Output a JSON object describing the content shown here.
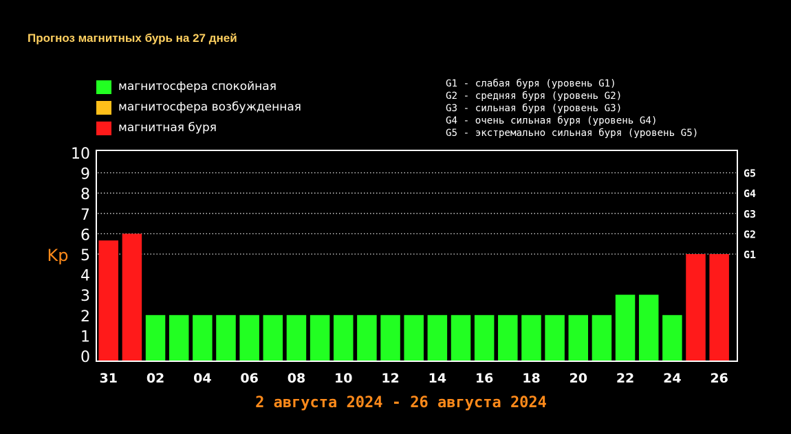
{
  "title": "Прогноз магнитных бурь на 27 дней",
  "legend": [
    {
      "label": "магнитосфера спокойная",
      "color": "#22ff22"
    },
    {
      "label": "магнитосфера возбужденная",
      "color": "#ffbf1a"
    },
    {
      "label": "магнитная буря",
      "color": "#ff1a1a"
    }
  ],
  "storm_levels": [
    "G1 - слабая буря (уровень G1)",
    "G2 - средняя буря (уровень G2)",
    "G3 - сильная буря (уровень G3)",
    "G4 - очень сильная буря (уровень G4)",
    "G5 - экстремально сильная буря (уровень G5)"
  ],
  "chart_data": {
    "type": "bar",
    "title": "Прогноз магнитных бурь на 27 дней",
    "ylabel": "Kp",
    "xlabel": "2 августа 2024 - 26 августа 2024",
    "ylim": [
      0,
      10
    ],
    "y_ticks": [
      "0",
      "1",
      "2",
      "3",
      "4",
      "5",
      "6",
      "7",
      "8",
      "9",
      "10"
    ],
    "right_axis_ticks": [
      {
        "label": "G1",
        "value": 5
      },
      {
        "label": "G2",
        "value": 6
      },
      {
        "label": "G3",
        "value": 7
      },
      {
        "label": "G4",
        "value": 8
      },
      {
        "label": "G5",
        "value": 9
      }
    ],
    "grid": "dotted lines at Kp 5-9",
    "x_tick_labels": [
      "31",
      "02",
      "04",
      "06",
      "08",
      "10",
      "12",
      "14",
      "16",
      "18",
      "20",
      "22",
      "24",
      "26"
    ],
    "categories": [
      "31",
      "01",
      "02",
      "03",
      "04",
      "05",
      "06",
      "07",
      "08",
      "09",
      "10",
      "11",
      "12",
      "13",
      "14",
      "15",
      "16",
      "17",
      "18",
      "19",
      "20",
      "21",
      "22",
      "23",
      "24",
      "25",
      "26"
    ],
    "values": [
      5.67,
      6.0,
      2,
      2,
      2,
      2,
      2,
      2,
      2,
      2,
      2,
      2,
      2,
      2,
      2,
      2,
      2,
      2,
      2,
      2,
      2,
      2,
      3,
      3,
      2,
      5,
      5
    ],
    "colors": [
      "#ff1a1a",
      "#ff1a1a",
      "#22ff22",
      "#22ff22",
      "#22ff22",
      "#22ff22",
      "#22ff22",
      "#22ff22",
      "#22ff22",
      "#22ff22",
      "#22ff22",
      "#22ff22",
      "#22ff22",
      "#22ff22",
      "#22ff22",
      "#22ff22",
      "#22ff22",
      "#22ff22",
      "#22ff22",
      "#22ff22",
      "#22ff22",
      "#22ff22",
      "#22ff22",
      "#22ff22",
      "#22ff22",
      "#ff1a1a",
      "#ff1a1a"
    ],
    "date_range_color": "#ff8a1a"
  }
}
